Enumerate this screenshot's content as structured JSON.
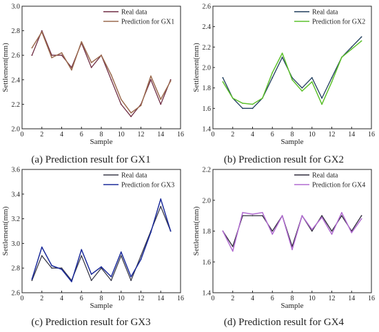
{
  "chart_data": [
    {
      "type": "line",
      "caption": "(a) Prediction result for GX1",
      "xlabel": "Sample",
      "ylabel": "Settlement(mm)",
      "xlim": [
        0,
        16
      ],
      "ylim": [
        2.0,
        3.0
      ],
      "xticks": [
        0,
        2,
        4,
        6,
        8,
        10,
        12,
        14,
        16
      ],
      "yticks": [
        2.0,
        2.2,
        2.4,
        2.6,
        2.8,
        3.0
      ],
      "legend_position": "top-right",
      "x": [
        1,
        2,
        3,
        4,
        5,
        6,
        7,
        8,
        9,
        10,
        11,
        12,
        13,
        14,
        15
      ],
      "series": [
        {
          "name": "Real data",
          "color": "#6e2c42",
          "values": [
            2.6,
            2.8,
            2.6,
            2.6,
            2.5,
            2.7,
            2.5,
            2.6,
            2.4,
            2.2,
            2.1,
            2.2,
            2.4,
            2.2,
            2.4
          ]
        },
        {
          "name": "Prediction for GX1",
          "color": "#9a6a4e",
          "values": [
            2.66,
            2.79,
            2.58,
            2.62,
            2.48,
            2.71,
            2.54,
            2.6,
            2.44,
            2.24,
            2.13,
            2.19,
            2.43,
            2.24,
            2.39
          ]
        }
      ]
    },
    {
      "type": "line",
      "caption": "(b) Prediction result for GX2",
      "xlabel": "Sample",
      "ylabel": "Settlement(mm)",
      "xlim": [
        0,
        16
      ],
      "ylim": [
        1.4,
        2.6
      ],
      "xticks": [
        0,
        2,
        4,
        6,
        8,
        10,
        12,
        14,
        16
      ],
      "yticks": [
        1.4,
        1.6,
        1.8,
        2.0,
        2.2,
        2.4,
        2.6
      ],
      "legend_position": "top-right",
      "x": [
        1,
        2,
        3,
        4,
        5,
        6,
        7,
        8,
        9,
        10,
        11,
        12,
        13,
        14,
        15
      ],
      "series": [
        {
          "name": "Real data",
          "color": "#1f3d5c",
          "values": [
            1.9,
            1.7,
            1.6,
            1.6,
            1.7,
            1.9,
            2.1,
            1.9,
            1.8,
            1.9,
            1.7,
            1.9,
            2.1,
            2.2,
            2.3
          ]
        },
        {
          "name": "Prediction for GX2",
          "color": "#5cc02b",
          "values": [
            1.86,
            1.7,
            1.65,
            1.64,
            1.7,
            1.95,
            2.14,
            1.88,
            1.77,
            1.86,
            1.64,
            1.86,
            2.1,
            2.18,
            2.26
          ]
        }
      ]
    },
    {
      "type": "line",
      "caption": "(c) Prediction result for GX3",
      "xlabel": "Sample",
      "ylabel": "Settlement(mm)",
      "xlim": [
        0,
        16
      ],
      "ylim": [
        2.6,
        3.6
      ],
      "xticks": [
        0,
        2,
        4,
        6,
        8,
        10,
        12,
        14,
        16
      ],
      "yticks": [
        2.6,
        2.8,
        3.0,
        3.2,
        3.4,
        3.6
      ],
      "legend_position": "top-right",
      "x": [
        1,
        2,
        3,
        4,
        5,
        6,
        7,
        8,
        9,
        10,
        11,
        12,
        13,
        14,
        15
      ],
      "series": [
        {
          "name": "Real data",
          "color": "#3a3a4a",
          "values": [
            2.7,
            2.9,
            2.8,
            2.8,
            2.7,
            2.9,
            2.7,
            2.8,
            2.7,
            2.9,
            2.7,
            2.9,
            3.1,
            3.3,
            3.1
          ]
        },
        {
          "name": "Prediction for GX3",
          "color": "#1a2a9a",
          "values": [
            2.71,
            2.97,
            2.82,
            2.79,
            2.69,
            2.95,
            2.75,
            2.81,
            2.73,
            2.93,
            2.73,
            2.87,
            3.09,
            3.36,
            3.1
          ]
        }
      ]
    },
    {
      "type": "line",
      "caption": "(d) Prediction result for GX4",
      "xlabel": "Sample",
      "ylabel": "Settlement(mm)",
      "xlim": [
        0,
        16
      ],
      "ylim": [
        1.4,
        2.2
      ],
      "xticks": [
        0,
        2,
        4,
        6,
        8,
        10,
        12,
        14,
        16
      ],
      "yticks": [
        1.4,
        1.6,
        1.8,
        2.0,
        2.2
      ],
      "legend_position": "top-right",
      "x": [
        1,
        2,
        3,
        4,
        5,
        6,
        7,
        8,
        9,
        10,
        11,
        12,
        13,
        14,
        15
      ],
      "series": [
        {
          "name": "Real data",
          "color": "#2e2a3a",
          "values": [
            1.8,
            1.7,
            1.9,
            1.9,
            1.9,
            1.8,
            1.9,
            1.7,
            1.9,
            1.8,
            1.9,
            1.8,
            1.9,
            1.8,
            1.9
          ]
        },
        {
          "name": "Prediction for GX4",
          "color": "#b06ad0",
          "values": [
            1.8,
            1.67,
            1.92,
            1.91,
            1.92,
            1.78,
            1.9,
            1.68,
            1.9,
            1.81,
            1.89,
            1.78,
            1.92,
            1.79,
            1.88
          ]
        }
      ]
    }
  ]
}
